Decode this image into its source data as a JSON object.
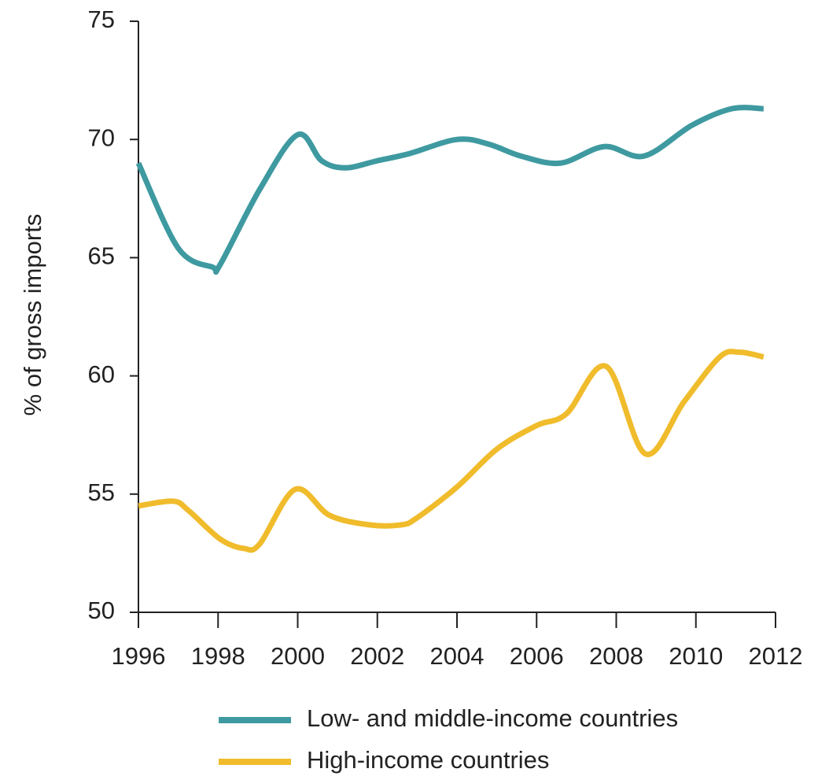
{
  "chart_data": {
    "type": "line",
    "y_label": "% of gross imports",
    "xlim": [
      1996,
      2012
    ],
    "xticks": [
      1996,
      1998,
      2000,
      2002,
      2004,
      2006,
      2008,
      2010,
      2012
    ],
    "ylim": [
      50,
      75
    ],
    "yticks": [
      50,
      55,
      60,
      65,
      70,
      75
    ],
    "series": [
      {
        "name": "Low- and middle-income countries",
        "color": "#3e9aa0",
        "x": [
          1996,
          1997,
          1997.86,
          1998.05,
          1999.05,
          2000,
          2000.6,
          2001.2,
          2002,
          2002.8,
          2004,
          2004.8,
          2005.6,
          2006.6,
          2007.7,
          2008.7,
          2009.9,
          2010.9,
          2011.7
        ],
        "values": [
          69.0,
          65.4,
          64.6,
          64.7,
          67.9,
          70.2,
          69.1,
          68.8,
          69.1,
          69.4,
          70.0,
          69.8,
          69.3,
          69.0,
          69.7,
          69.3,
          70.6,
          71.3,
          71.3
        ]
      },
      {
        "name": "High-income countries",
        "color": "#f0bc2c",
        "x": [
          1996,
          1996.87,
          1997.26,
          1998.05,
          1998.65,
          1999.05,
          1999.94,
          2000.8,
          2001.8,
          2002.6,
          2003.0,
          2004,
          2005,
          2006,
          2006.75,
          2007.75,
          2008.73,
          2009.7,
          2010.6,
          2011.1,
          2011.7
        ],
        "values": [
          54.5,
          54.7,
          54.3,
          53.1,
          52.7,
          52.9,
          55.2,
          54.1,
          53.7,
          53.7,
          54.0,
          55.3,
          56.9,
          57.9,
          58.4,
          60.4,
          56.7,
          58.9,
          60.8,
          61.0,
          60.8
        ]
      }
    ]
  }
}
